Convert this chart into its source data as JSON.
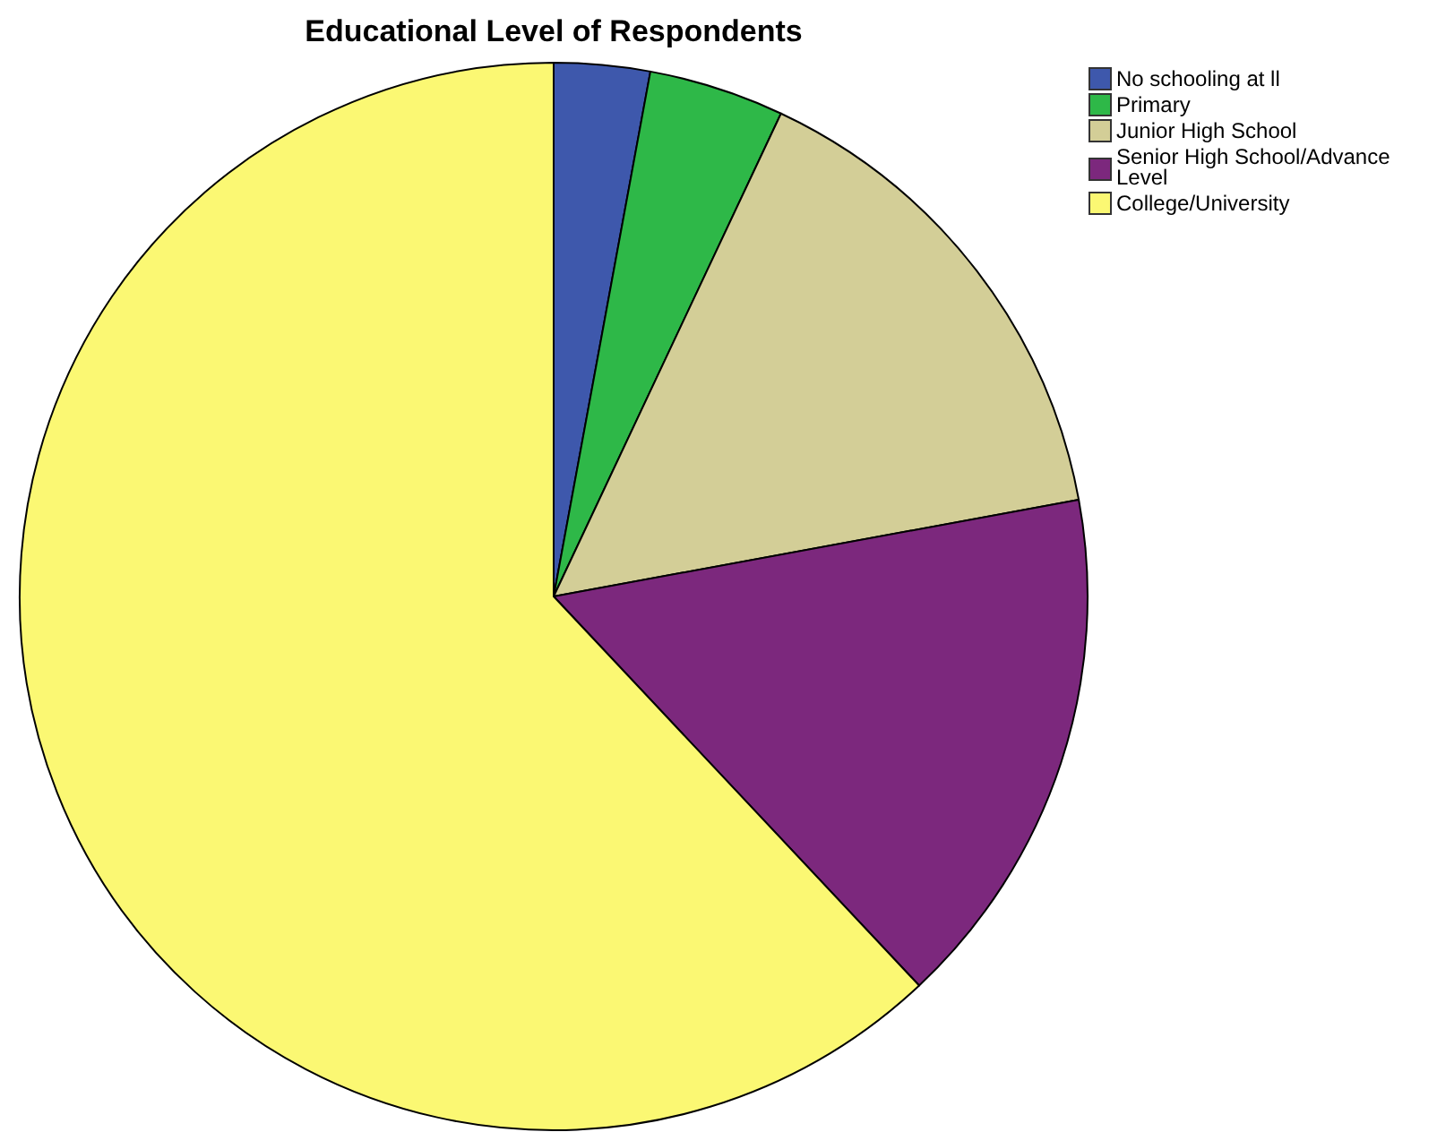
{
  "chart_data": {
    "type": "pie",
    "title": "Educational Level of Respondents",
    "categories": [
      "No schooling at ll",
      "Primary",
      "Junior High School",
      "Senior High School/Advance Level",
      "College/University"
    ],
    "values": [
      2.9,
      4.1,
      15.1,
      15.9,
      62.0
    ],
    "colors": [
      "#3e58ac",
      "#2eb848",
      "#d3ce97",
      "#7c287d",
      "#fbf873"
    ],
    "legend": "top right"
  }
}
